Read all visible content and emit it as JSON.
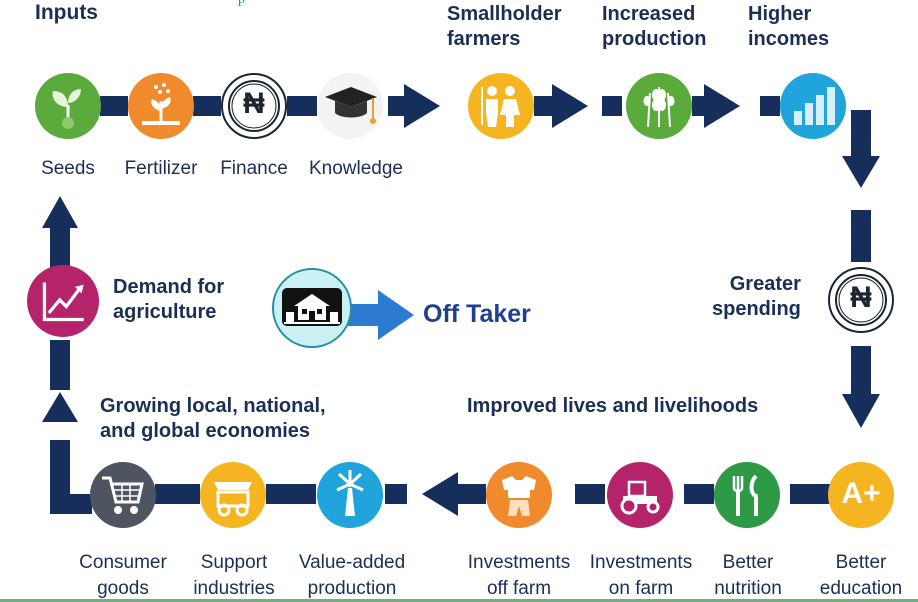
{
  "stray_text": "p",
  "headings": {
    "inputs": "Inputs",
    "smallholder": [
      "Smallholder",
      "farmers"
    ],
    "increased": [
      "Increased",
      "production"
    ],
    "higher": [
      "Higher",
      "incomes"
    ],
    "greater": [
      "Greater",
      "spending"
    ],
    "improved": "Improved lives and livelihoods",
    "growing": [
      "Growing local, national,",
      "and global economies"
    ],
    "demand": [
      "Demand for",
      "agriculture"
    ]
  },
  "captions": {
    "seeds": "Seeds",
    "fertilizer": "Fertilizer",
    "finance": "Finance",
    "knowledge": "Knowledge",
    "consumer": [
      "Consumer",
      "goods"
    ],
    "support": [
      "Support",
      "industries"
    ],
    "value_added": [
      "Value-added",
      "production"
    ],
    "off_farm": [
      "Investments",
      "off farm"
    ],
    "on_farm": [
      "Investments",
      "on farm"
    ],
    "nutrition": [
      "Better",
      "nutrition"
    ],
    "education": [
      "Better",
      "education"
    ]
  },
  "off_taker": "Off Taker",
  "naira_symbol": "₦",
  "grade_symbol": "A+",
  "icons": {
    "seeds": "seedling-icon",
    "fertilizer": "fertilizer-plant-icon",
    "finance": "naira-coin-icon",
    "knowledge": "graduation-cap-icon",
    "farmers": "farmer-couple-icon",
    "production": "wheat-icon",
    "incomes": "bar-chart-icon",
    "spending": "naira-coin-icon",
    "education": "a-plus-grade-icon",
    "nutrition": "fork-knife-icon",
    "on_farm": "tractor-icon",
    "off_farm": "clothing-icon",
    "value_added": "windmill-icon",
    "support": "market-cart-icon",
    "consumer": "shopping-cart-icon",
    "demand": "growth-chart-icon",
    "off_taker": "farmhouse-icon"
  },
  "colors": {
    "navy": "#162e5c",
    "green": "#5aaa3c",
    "orange": "#f08a2c",
    "yellow": "#f5b521",
    "blue": "#20a4dc",
    "magenta": "#b5246a",
    "dark_green": "#2f9a45",
    "gray": "#4e5560",
    "off_taker_arrow": "#2d7bd1",
    "off_taker_text": "#1f3f8f"
  }
}
